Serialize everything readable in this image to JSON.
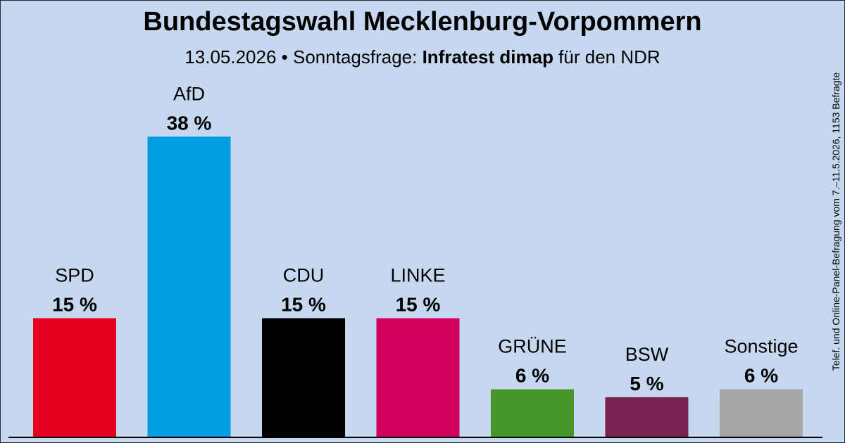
{
  "header": {
    "title": "Bundestagswahl Mecklenburg-Vorpommern",
    "subtitle_date": "13.05.2026",
    "subtitle_sep": " • ",
    "subtitle_label": "Sonntagsfrage: ",
    "subtitle_institute": "Infratest dimap",
    "subtitle_client": " für den NDR"
  },
  "side_note": "Telef. und Online-Panel-Befragung vom 7.–11.5.2026, 1153 Befragte",
  "chart_data": {
    "type": "bar",
    "categories": [
      "SPD",
      "AfD",
      "CDU",
      "LINKE",
      "GRÜNE",
      "BSW",
      "Sonstige"
    ],
    "values": [
      15,
      38,
      15,
      15,
      6,
      5,
      6
    ],
    "value_labels": [
      "15 %",
      "38 %",
      "15 %",
      "15 %",
      "6 %",
      "5 %",
      "6 %"
    ],
    "colors": [
      "#e3001f",
      "#009ee0",
      "#000000",
      "#d2005d",
      "#46962b",
      "#7b2350",
      "#a6a6a6"
    ],
    "unit": "%",
    "grid": false,
    "legend": "none"
  }
}
